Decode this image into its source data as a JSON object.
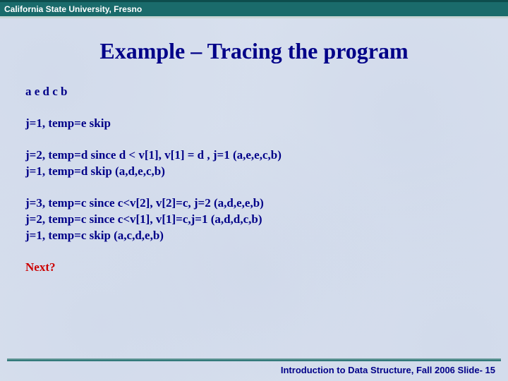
{
  "header": {
    "org": "California State University, Fresno"
  },
  "slide": {
    "title": "Example – Tracing the program",
    "line1": "a e d c b",
    "line2": "j=1, temp=e skip",
    "line3a": "j=2, temp=d since d < v[1], v[1] = d , j=1 (a,e,e,c,b)",
    "line3b": "j=1, temp=d skip (a,d,e,c,b)",
    "line4a": "j=3, temp=c since c<v[2], v[2]=c, j=2 (a,d,e,e,b)",
    "line4b": "j=2, temp=c since c<v[1], v[1]=c,j=1  (a,d,d,c,b)",
    "line4c": "j=1, temp=c skip  (a,c,d,e,b)",
    "next": "Next?"
  },
  "footer": {
    "text": "Introduction to Data Structure, Fall 2006  Slide- 15"
  },
  "colors": {
    "header_bg": "#1a6b6b",
    "title_color": "#000088",
    "body_color": "#000088",
    "next_color": "#cc0000",
    "page_bg": "#d8e0ee"
  },
  "fonts": {
    "header_size_pt": 12,
    "title_size_pt": 32,
    "body_size_pt": 17,
    "footer_size_pt": 13
  }
}
